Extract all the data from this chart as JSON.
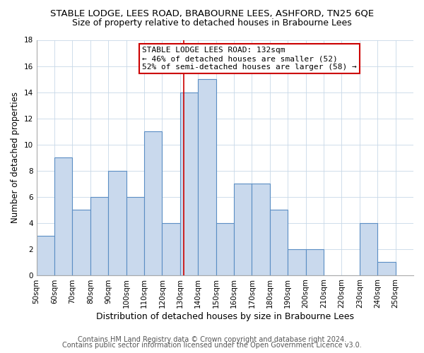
{
  "title": "STABLE LODGE, LEES ROAD, BRABOURNE LEES, ASHFORD, TN25 6QE",
  "subtitle": "Size of property relative to detached houses in Brabourne Lees",
  "xlabel": "Distribution of detached houses by size in Brabourne Lees",
  "ylabel": "Number of detached properties",
  "bins": [
    50,
    60,
    70,
    80,
    90,
    100,
    110,
    120,
    130,
    140,
    150,
    160,
    170,
    180,
    190,
    200,
    210,
    220,
    230,
    240,
    250
  ],
  "counts": [
    3,
    9,
    5,
    6,
    8,
    6,
    11,
    4,
    14,
    15,
    4,
    7,
    7,
    5,
    2,
    2,
    0,
    0,
    4,
    1
  ],
  "bar_color": "#c9d9ed",
  "bar_edge_color": "#5b8ec4",
  "vline_x": 132,
  "vline_color": "#cc0000",
  "ylim": [
    0,
    18
  ],
  "yticks": [
    0,
    2,
    4,
    6,
    8,
    10,
    12,
    14,
    16,
    18
  ],
  "annotation_title": "STABLE LODGE LEES ROAD: 132sqm",
  "annotation_line1": "← 46% of detached houses are smaller (52)",
  "annotation_line2": "52% of semi-detached houses are larger (58) →",
  "annotation_box_color": "#ffffff",
  "annotation_box_edge_color": "#cc0000",
  "footer1": "Contains HM Land Registry data © Crown copyright and database right 2024.",
  "footer2": "Contains public sector information licensed under the Open Government Licence v3.0.",
  "bg_color": "#ffffff",
  "plot_bg_color": "#ffffff",
  "title_fontsize": 9.5,
  "subtitle_fontsize": 9,
  "xlabel_fontsize": 9,
  "ylabel_fontsize": 8.5,
  "tick_label_fontsize": 7.5,
  "footer_fontsize": 7
}
